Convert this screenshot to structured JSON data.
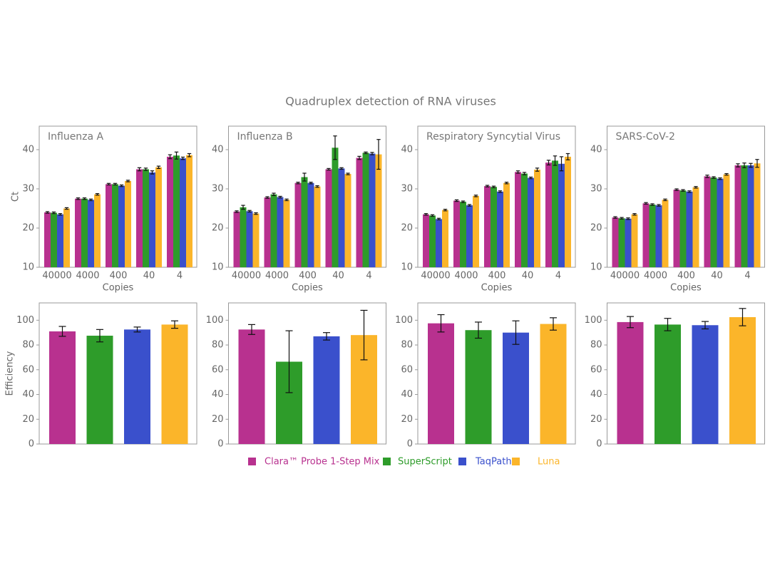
{
  "title": "Quadruplex detection of RNA viruses",
  "chart_data": [
    {
      "type": "bar",
      "title": "Influenza A",
      "ylabel": "Ct",
      "xlabel": "Copies",
      "categories": [
        "40000",
        "4000",
        "400",
        "40",
        "4"
      ],
      "ylim": [
        10,
        46
      ],
      "yticks": [
        10,
        20,
        30,
        40
      ],
      "series": [
        {
          "name": "Clara™ Probe 1-Step Mix",
          "color": "#b8318f",
          "values": [
            24,
            27.5,
            31.2,
            35,
            38.2
          ],
          "errors": [
            0.2,
            0.2,
            0.2,
            0.4,
            0.5
          ]
        },
        {
          "name": "SuperScript",
          "color": "#2e9c2a",
          "values": [
            23.9,
            27.5,
            31.2,
            35,
            38.5
          ],
          "errors": [
            0.2,
            0.2,
            0.2,
            0.3,
            0.9
          ]
        },
        {
          "name": "TaqPath",
          "color": "#3a50cc",
          "values": [
            23.5,
            27.2,
            30.8,
            34.2,
            37.8
          ],
          "errors": [
            0.2,
            0.2,
            0.2,
            0.4,
            0.3
          ]
        },
        {
          "name": "Luna",
          "color": "#fbb52a",
          "values": [
            25,
            28.6,
            32,
            35.5,
            38.6
          ],
          "errors": [
            0.2,
            0.2,
            0.2,
            0.3,
            0.4
          ]
        }
      ]
    },
    {
      "type": "bar",
      "title": "Influenza B",
      "xlabel": "Copies",
      "categories": [
        "40000",
        "4000",
        "400",
        "40",
        "4"
      ],
      "ylim": [
        10,
        46
      ],
      "yticks": [
        10,
        20,
        30,
        40
      ],
      "series": [
        {
          "values": [
            24.2,
            27.8,
            31.5,
            35,
            37.9
          ],
          "errors": [
            0.2,
            0.2,
            0.2,
            0.2,
            0.4
          ]
        },
        {
          "values": [
            25.3,
            28.6,
            33,
            40.5,
            39.2
          ],
          "errors": [
            0.5,
            0.3,
            1,
            3,
            0.2
          ]
        },
        {
          "values": [
            24.3,
            27.9,
            31.5,
            35.2,
            39
          ],
          "errors": [
            0.2,
            0.2,
            0.2,
            0.2,
            0.3
          ]
        },
        {
          "values": [
            23.7,
            27.2,
            30.6,
            33.8,
            38.8
          ],
          "errors": [
            0.2,
            0.2,
            0.2,
            0.2,
            3.8
          ]
        }
      ]
    },
    {
      "type": "bar",
      "title": "Respiratory Syncytial Virus",
      "xlabel": "Copies",
      "categories": [
        "40000",
        "4000",
        "400",
        "40",
        "4"
      ],
      "ylim": [
        10,
        46
      ],
      "yticks": [
        10,
        20,
        30,
        40
      ],
      "series": [
        {
          "values": [
            23.5,
            27,
            30.7,
            34.3,
            36.7
          ],
          "errors": [
            0.2,
            0.2,
            0.2,
            0.3,
            0.6
          ]
        },
        {
          "values": [
            23.2,
            26.7,
            30.5,
            33.9,
            37.2
          ],
          "errors": [
            0.2,
            0.2,
            0.2,
            0.3,
            1.2
          ]
        },
        {
          "values": [
            22.3,
            25.8,
            29.3,
            32.8,
            36.4
          ],
          "errors": [
            0.2,
            0.2,
            0.2,
            0.2,
            1.8
          ]
        },
        {
          "values": [
            24.6,
            28.2,
            31.5,
            34.9,
            38.2
          ],
          "errors": [
            0.2,
            0.2,
            0.2,
            0.4,
            0.8
          ]
        }
      ]
    },
    {
      "type": "bar",
      "title": "SARS-CoV-2",
      "xlabel": "Copies",
      "categories": [
        "40000",
        "4000",
        "400",
        "40",
        "4"
      ],
      "ylim": [
        10,
        46
      ],
      "yticks": [
        10,
        20,
        30,
        40
      ],
      "series": [
        {
          "values": [
            22.7,
            26.3,
            29.8,
            33.2,
            36
          ],
          "errors": [
            0.2,
            0.2,
            0.2,
            0.3,
            0.4
          ]
        },
        {
          "values": [
            22.5,
            26,
            29.6,
            32.9,
            36
          ],
          "errors": [
            0.2,
            0.2,
            0.2,
            0.2,
            0.6
          ]
        },
        {
          "values": [
            22.4,
            25.8,
            29.3,
            32.6,
            36
          ],
          "errors": [
            0.2,
            0.2,
            0.2,
            0.2,
            0.5
          ]
        },
        {
          "values": [
            23.5,
            27.2,
            30.4,
            33.7,
            36.5
          ],
          "errors": [
            0.2,
            0.2,
            0.2,
            0.2,
            1
          ]
        }
      ]
    },
    {
      "type": "bar",
      "ylabel": "Efficiency",
      "ylim": [
        0,
        114
      ],
      "yticks": [
        0,
        20,
        40,
        60,
        80,
        100
      ],
      "series": [
        {
          "values": [
            91
          ],
          "errors": [
            4
          ]
        },
        {
          "values": [
            87.5
          ],
          "errors": [
            5
          ]
        },
        {
          "values": [
            92.5
          ],
          "errors": [
            2
          ]
        },
        {
          "values": [
            96.5
          ],
          "errors": [
            3
          ]
        }
      ]
    },
    {
      "type": "bar",
      "ylim": [
        0,
        114
      ],
      "yticks": [
        0,
        20,
        40,
        60,
        80,
        100
      ],
      "series": [
        {
          "values": [
            92.5
          ],
          "errors": [
            4
          ]
        },
        {
          "values": [
            66.5
          ],
          "errors": [
            25
          ]
        },
        {
          "values": [
            87
          ],
          "errors": [
            3
          ]
        },
        {
          "values": [
            88
          ],
          "errors": [
            20
          ]
        }
      ]
    },
    {
      "type": "bar",
      "ylim": [
        0,
        114
      ],
      "yticks": [
        0,
        20,
        40,
        60,
        80,
        100
      ],
      "series": [
        {
          "values": [
            97.5
          ],
          "errors": [
            7
          ]
        },
        {
          "values": [
            92
          ],
          "errors": [
            6.5
          ]
        },
        {
          "values": [
            90
          ],
          "errors": [
            9.5
          ]
        },
        {
          "values": [
            97
          ],
          "errors": [
            5
          ]
        }
      ]
    },
    {
      "type": "bar",
      "ylim": [
        0,
        114
      ],
      "yticks": [
        0,
        20,
        40,
        60,
        80,
        100
      ],
      "series": [
        {
          "values": [
            98.5
          ],
          "errors": [
            4.5
          ]
        },
        {
          "values": [
            96.5
          ],
          "errors": [
            5
          ]
        },
        {
          "values": [
            96
          ],
          "errors": [
            3
          ]
        },
        {
          "values": [
            102.5
          ],
          "errors": [
            7
          ]
        }
      ]
    }
  ]
}
